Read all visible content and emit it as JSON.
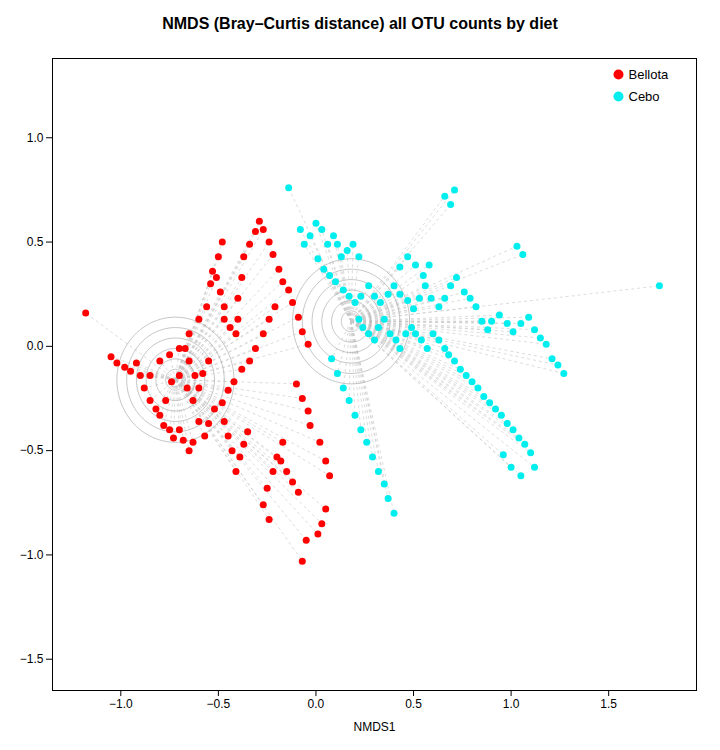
{
  "chart_data": {
    "type": "scatter",
    "title": "NMDS (Bray–Curtis distance) all OTU counts by diet",
    "xlabel": "NMDS1",
    "xlim": [
      -1.35,
      1.95
    ],
    "ylim": [
      -1.65,
      1.38
    ],
    "xticks": [
      {
        "value": -1.0,
        "label": "−1.0"
      },
      {
        "value": -0.5,
        "label": "−0.5"
      },
      {
        "value": 0.0,
        "label": "0.0"
      },
      0.5,
      {
        "value": 1.0,
        "label": "1.0"
      },
      1.5
    ],
    "yticks": [
      {
        "value": -1.5,
        "label": "−1.5"
      },
      {
        "value": -1.0,
        "label": "−1.0"
      },
      {
        "value": -0.5,
        "label": "−0.5"
      },
      {
        "value": 0.0,
        "label": "0.0"
      },
      0.5,
      {
        "value": 1.0,
        "label": "1.0"
      }
    ],
    "grid": false,
    "legend": "upper right",
    "series": [
      {
        "name": "Bellota",
        "color": "#FF0000",
        "marker": "o",
        "center": [
          -0.72,
          -0.16
        ],
        "circle_radii": [
          0.05,
          0.1,
          0.15,
          0.2,
          0.25,
          0.3
        ],
        "x": [
          -1.18,
          -1.05,
          -1.02,
          -0.98,
          -0.95,
          -0.92,
          -0.9,
          -0.88,
          -0.85,
          -0.82,
          -0.8,
          -0.78,
          -0.75,
          -0.73,
          -0.7,
          -0.68,
          -0.65,
          -0.63,
          -0.6,
          -0.77,
          -0.74,
          -0.7,
          -0.66,
          -0.63,
          -0.85,
          -0.8,
          -0.75,
          -0.7,
          -0.65,
          -0.6,
          -0.56,
          -0.54,
          -0.53,
          -0.51,
          -0.49,
          -0.47,
          -0.47,
          -0.44,
          -0.41,
          -0.4,
          -0.4,
          -0.38,
          -0.37,
          -0.34,
          -0.31,
          -0.29,
          -0.27,
          -0.24,
          -0.22,
          -0.19,
          -0.17,
          -0.14,
          -0.12,
          -0.09,
          -0.07,
          -0.04,
          -0.35,
          -0.37,
          -0.39,
          -0.41,
          -0.43,
          -0.45,
          -0.47,
          -0.17,
          -0.2,
          -0.22,
          -0.25,
          -0.27,
          -0.24,
          -0.05,
          -0.07,
          -0.09,
          -0.12,
          -0.15,
          -0.18,
          -0.03,
          0.02,
          0.05,
          0.07,
          0.05,
          0.03,
          0.01,
          -0.55,
          -0.58,
          -0.6,
          -0.62,
          -0.65,
          -0.67,
          -0.52,
          -0.55,
          -0.57,
          -0.48,
          -0.45,
          -0.42,
          -0.38,
          -0.34,
          -0.31,
          -0.27,
          -0.24,
          -0.21,
          -0.5,
          -0.48,
          -0.1,
          -0.07,
          -0.04
        ],
        "values": [
          0.16,
          -0.05,
          -0.08,
          -0.1,
          -0.12,
          -0.08,
          -0.14,
          -0.2,
          -0.26,
          -0.3,
          -0.33,
          -0.38,
          -0.4,
          -0.44,
          -0.4,
          -0.45,
          -0.5,
          -0.46,
          -0.36,
          -0.26,
          -0.17,
          -0.14,
          -0.2,
          -0.26,
          -0.14,
          -0.07,
          -0.04,
          -0.01,
          0.06,
          0.13,
          0.19,
          0.3,
          0.36,
          0.33,
          0.26,
          0.19,
          0.13,
          0.09,
          0.06,
          0.13,
          0.23,
          0.33,
          0.43,
          0.49,
          0.55,
          0.6,
          0.56,
          0.5,
          0.44,
          0.37,
          0.31,
          0.27,
          0.21,
          0.14,
          0.07,
          0.01,
          -0.41,
          -0.47,
          -0.53,
          -0.6,
          -0.5,
          -0.43,
          -0.36,
          -0.46,
          -0.53,
          -0.6,
          -0.68,
          -0.76,
          -0.83,
          -0.93,
          -1.03,
          -0.7,
          -0.65,
          -0.6,
          -0.55,
          -0.38,
          -0.46,
          -0.55,
          -0.62,
          -0.78,
          -0.85,
          -0.9,
          -0.07,
          -0.13,
          -0.2,
          -0.14,
          -0.07,
          -0.01,
          -0.3,
          -0.37,
          -0.43,
          -0.27,
          -0.21,
          -0.17,
          -0.11,
          -0.07,
          -0.01,
          0.06,
          0.13,
          0.19,
          0.43,
          0.5,
          -0.18,
          -0.25,
          -0.31
        ]
      },
      {
        "name": "Cebo",
        "color": "#00EEEE",
        "marker": "o",
        "center": [
          0.18,
          0.12
        ],
        "circle_radii": [
          0.05,
          0.1,
          0.15,
          0.2,
          0.25,
          0.3
        ],
        "x": [
          -0.14,
          -0.08,
          -0.06,
          -0.03,
          0.0,
          0.03,
          0.06,
          0.09,
          0.11,
          0.13,
          0.16,
          0.19,
          0.22,
          0.01,
          0.04,
          0.07,
          0.1,
          0.14,
          0.17,
          0.2,
          0.23,
          0.27,
          0.3,
          0.33,
          0.37,
          0.4,
          0.43,
          0.47,
          0.5,
          0.53,
          0.56,
          0.59,
          0.63,
          0.66,
          0.69,
          0.72,
          0.76,
          0.79,
          0.82,
          0.66,
          0.69,
          0.71,
          0.22,
          0.24,
          0.27,
          0.3,
          0.32,
          0.35,
          0.38,
          0.41,
          0.43,
          0.46,
          0.49,
          0.51,
          0.54,
          0.57,
          0.6,
          0.63,
          0.66,
          0.68,
          0.71,
          0.74,
          0.77,
          0.8,
          0.83,
          0.86,
          0.89,
          0.92,
          0.95,
          0.98,
          1.01,
          1.04,
          1.07,
          1.1,
          1.12,
          0.08,
          0.11,
          0.14,
          0.17,
          0.2,
          0.23,
          0.26,
          0.29,
          0.32,
          0.35,
          0.37,
          0.4,
          0.85,
          0.88,
          0.9,
          0.94,
          0.98,
          1.01,
          1.05,
          1.09,
          1.12,
          1.15,
          1.18,
          1.21,
          1.24,
          1.27,
          1.76,
          1.03,
          1.06,
          0.96,
          1.0,
          1.05,
          0.43,
          0.47,
          0.51,
          0.55,
          0.58
        ],
        "values": [
          0.76,
          0.56,
          0.49,
          0.53,
          0.59,
          0.56,
          0.49,
          0.53,
          0.49,
          0.43,
          0.46,
          0.49,
          0.43,
          0.42,
          0.37,
          0.34,
          0.31,
          0.27,
          0.24,
          0.21,
          0.24,
          0.29,
          0.24,
          0.21,
          0.25,
          0.29,
          0.25,
          0.22,
          0.18,
          0.23,
          0.29,
          0.23,
          0.19,
          0.23,
          0.29,
          0.33,
          0.26,
          0.23,
          0.19,
          0.72,
          0.68,
          0.75,
          0.13,
          0.09,
          0.06,
          0.03,
          0.09,
          0.13,
          0.06,
          0.03,
          -0.01,
          0.06,
          0.09,
          0.06,
          0.03,
          -0.01,
          0.06,
          0.03,
          -0.01,
          -0.04,
          -0.07,
          -0.11,
          -0.14,
          -0.17,
          -0.2,
          -0.24,
          -0.27,
          -0.3,
          -0.33,
          -0.37,
          -0.4,
          -0.44,
          -0.47,
          -0.51,
          -0.58,
          -0.06,
          -0.13,
          -0.2,
          -0.26,
          -0.33,
          -0.4,
          -0.46,
          -0.53,
          -0.6,
          -0.66,
          -0.73,
          -0.8,
          0.12,
          0.08,
          0.12,
          0.15,
          0.11,
          0.07,
          0.11,
          0.14,
          0.08,
          0.04,
          0.01,
          -0.06,
          -0.09,
          -0.13,
          0.29,
          0.48,
          0.44,
          -0.52,
          -0.58,
          -0.62,
          0.38,
          0.43,
          0.39,
          0.34,
          0.39
        ]
      }
    ]
  }
}
